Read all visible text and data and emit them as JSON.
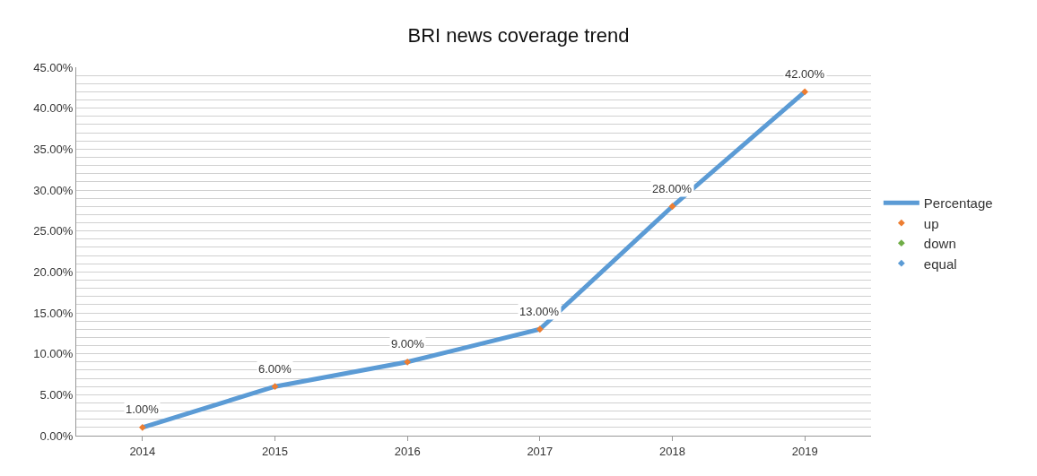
{
  "chart_data": {
    "type": "line",
    "title": "BRI news coverage trend",
    "categories": [
      "2014",
      "2015",
      "2016",
      "2017",
      "2018",
      "2019"
    ],
    "series": [
      {
        "name": "Percentage",
        "color": "#5b9bd5",
        "values": [
          1,
          6,
          9,
          13,
          28,
          42
        ],
        "value_labels": [
          "1.00%",
          "6.00%",
          "9.00%",
          "13.00%",
          "28.00%",
          "42.00%"
        ],
        "marker": "none"
      },
      {
        "name": "up",
        "type": "scatter",
        "color": "#ed7d31",
        "values": [
          1,
          6,
          9,
          13,
          28,
          42
        ],
        "marker": "diamond"
      },
      {
        "name": "down",
        "type": "scatter",
        "color": "#70ad47",
        "values": [
          null,
          null,
          null,
          null,
          null,
          null
        ],
        "marker": "diamond"
      },
      {
        "name": "equal",
        "type": "scatter",
        "color": "#5b9bd5",
        "values": [
          null,
          null,
          null,
          null,
          null,
          null
        ],
        "marker": "diamond"
      }
    ],
    "ylim": [
      0,
      45
    ],
    "yticks": [
      {
        "value": 0,
        "label": "0.00%"
      },
      {
        "value": 1,
        "label": null
      },
      {
        "value": 2,
        "label": null
      },
      {
        "value": 3,
        "label": null
      },
      {
        "value": 4,
        "label": null
      },
      {
        "value": 5,
        "label": "5.00%"
      },
      {
        "value": 6,
        "label": null
      },
      {
        "value": 7,
        "label": null
      },
      {
        "value": 8,
        "label": null
      },
      {
        "value": 9,
        "label": null
      },
      {
        "value": 10,
        "label": "10.00%"
      },
      {
        "value": 11,
        "label": null
      },
      {
        "value": 12,
        "label": null
      },
      {
        "value": 13,
        "label": null
      },
      {
        "value": 14,
        "label": null
      },
      {
        "value": 15,
        "label": "15.00%"
      },
      {
        "value": 16,
        "label": null
      },
      {
        "value": 17,
        "label": null
      },
      {
        "value": 18,
        "label": null
      },
      {
        "value": 19,
        "label": null
      },
      {
        "value": 20,
        "label": "20.00%"
      },
      {
        "value": 21,
        "label": null
      },
      {
        "value": 22,
        "label": null
      },
      {
        "value": 23,
        "label": null
      },
      {
        "value": 24,
        "label": null
      },
      {
        "value": 25,
        "label": "25.00%"
      },
      {
        "value": 26,
        "label": null
      },
      {
        "value": 27,
        "label": null
      },
      {
        "value": 28,
        "label": null
      },
      {
        "value": 29,
        "label": null
      },
      {
        "value": 30,
        "label": "30.00%"
      },
      {
        "value": 31,
        "label": null
      },
      {
        "value": 32,
        "label": null
      },
      {
        "value": 33,
        "label": null
      },
      {
        "value": 34,
        "label": null
      },
      {
        "value": 35,
        "label": "35.00%"
      },
      {
        "value": 36,
        "label": null
      },
      {
        "value": 37,
        "label": null
      },
      {
        "value": 38,
        "label": null
      },
      {
        "value": 39,
        "label": null
      },
      {
        "value": 40,
        "label": "40.00%"
      },
      {
        "value": 41,
        "label": null
      },
      {
        "value": 42,
        "label": null
      },
      {
        "value": 43,
        "label": null
      },
      {
        "value": 44,
        "label": null
      },
      {
        "value": 45,
        "label": "45.00%"
      }
    ],
    "grid": "y",
    "legend": "right",
    "line_style": "solid"
  }
}
